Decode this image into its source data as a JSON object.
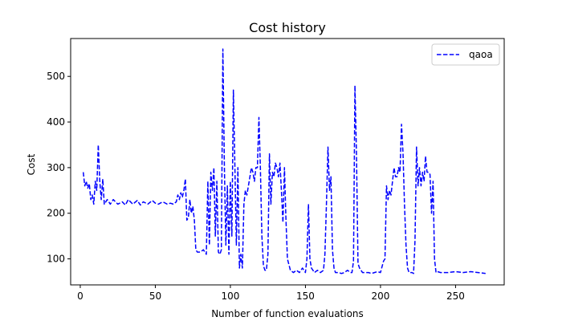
{
  "chart_data": {
    "type": "line",
    "title": "Cost history",
    "xlabel": "Number of function evaluations",
    "ylabel": "Cost",
    "xlim": [
      -6.4,
      282.4
    ],
    "ylim": [
      43,
      583
    ],
    "xticks": [
      0,
      50,
      100,
      150,
      200,
      250
    ],
    "yticks": [
      100,
      200,
      300,
      400,
      500
    ],
    "grid": false,
    "legend_position": "top-right",
    "series": [
      {
        "name": "qaoa",
        "color": "#0000ff",
        "linestyle": "dashed",
        "x": [
          2,
          3,
          4,
          5,
          6,
          7,
          8,
          9,
          10,
          11,
          12,
          13,
          14,
          15,
          16,
          18,
          20,
          22,
          25,
          28,
          30,
          32,
          35,
          38,
          40,
          42,
          45,
          48,
          50,
          52,
          55,
          58,
          60,
          62,
          64,
          65,
          66,
          67,
          68,
          69,
          70,
          71,
          72,
          73,
          74,
          75,
          76,
          77,
          78,
          80,
          82,
          84,
          85,
          86,
          87,
          88,
          89,
          90,
          91,
          92,
          93,
          94,
          95,
          96,
          97,
          98,
          99,
          100,
          101,
          102,
          103,
          104,
          105,
          106,
          107,
          108,
          109,
          110,
          111,
          112,
          113,
          114,
          115,
          116,
          117,
          118,
          119,
          120,
          121,
          122,
          123,
          124,
          125,
          126,
          127,
          128,
          129,
          130,
          131,
          132,
          133,
          134,
          135,
          136,
          137,
          138,
          140,
          142,
          144,
          146,
          148,
          150,
          151,
          152,
          153,
          154,
          156,
          158,
          160,
          162,
          163,
          164,
          165,
          166,
          167,
          168,
          169,
          170,
          172,
          174,
          176,
          178,
          180,
          181,
          182,
          183,
          184,
          185,
          186,
          188,
          190,
          192,
          194,
          196,
          198,
          200,
          202,
          203,
          204,
          205,
          206,
          207,
          208,
          209,
          210,
          211,
          212,
          213,
          214,
          215,
          216,
          217,
          218,
          219,
          220,
          221,
          222,
          223,
          224,
          225,
          226,
          227,
          228,
          229,
          230,
          231,
          232,
          233,
          234,
          235,
          236,
          237,
          238,
          240,
          245,
          250,
          255,
          260,
          265,
          270
        ],
        "y": [
          290,
          260,
          270,
          255,
          265,
          230,
          240,
          220,
          270,
          250,
          350,
          270,
          230,
          275,
          220,
          230,
          220,
          230,
          220,
          225,
          218,
          230,
          220,
          228,
          218,
          225,
          220,
          228,
          222,
          220,
          225,
          220,
          222,
          220,
          225,
          240,
          230,
          245,
          235,
          250,
          275,
          185,
          190,
          230,
          200,
          215,
          185,
          120,
          115,
          115,
          120,
          110,
          270,
          130,
          290,
          250,
          300,
          150,
          270,
          115,
          110,
          120,
          560,
          300,
          130,
          260,
          110,
          270,
          150,
          470,
          300,
          130,
          300,
          80,
          110,
          80,
          220,
          250,
          240,
          260,
          280,
          300,
          290,
          270,
          300,
          300,
          410,
          300,
          150,
          85,
          75,
          75,
          110,
          330,
          220,
          290,
          280,
          310,
          300,
          280,
          310,
          250,
          180,
          300,
          190,
          100,
          75,
          70,
          75,
          70,
          80,
          70,
          100,
          220,
          100,
          80,
          70,
          75,
          70,
          75,
          110,
          220,
          345,
          250,
          280,
          120,
          80,
          70,
          70,
          68,
          70,
          75,
          70,
          70,
          95,
          480,
          330,
          90,
          80,
          70,
          70,
          70,
          68,
          70,
          72,
          70,
          95,
          100,
          260,
          230,
          250,
          240,
          270,
          300,
          280,
          280,
          300,
          290,
          395,
          330,
          220,
          130,
          80,
          70,
          70,
          70,
          68,
          140,
          345,
          260,
          300,
          260,
          290,
          270,
          325,
          290,
          290,
          285,
          200,
          270,
          100,
          70,
          72,
          70,
          70,
          72,
          70,
          72,
          70,
          68
        ]
      }
    ]
  }
}
